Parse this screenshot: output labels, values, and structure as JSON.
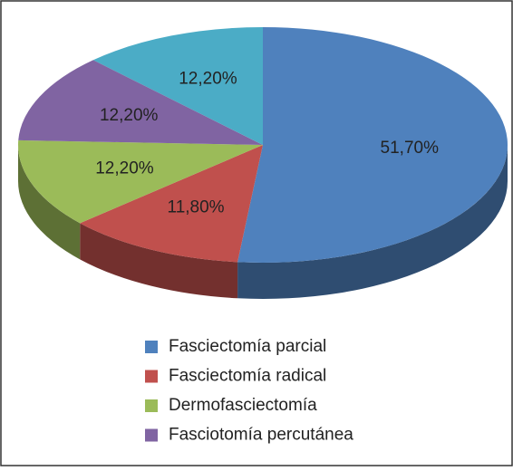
{
  "chart_data": {
    "type": "pie",
    "categories": [
      "Fasciectomía parcial",
      "Fasciectomía radical",
      "Dermofasciectomía",
      "Fasciotomía percutánea",
      null
    ],
    "values": [
      51.7,
      11.8,
      12.2,
      12.2,
      12.2
    ],
    "value_labels": [
      "51,70%",
      "11,80%",
      "12,20%",
      "12,20%",
      "12,20%"
    ],
    "colors": [
      "#4f81bd",
      "#c0504d",
      "#9bbb59",
      "#8064a2",
      "#4bacc6"
    ],
    "legend": "bottom"
  }
}
